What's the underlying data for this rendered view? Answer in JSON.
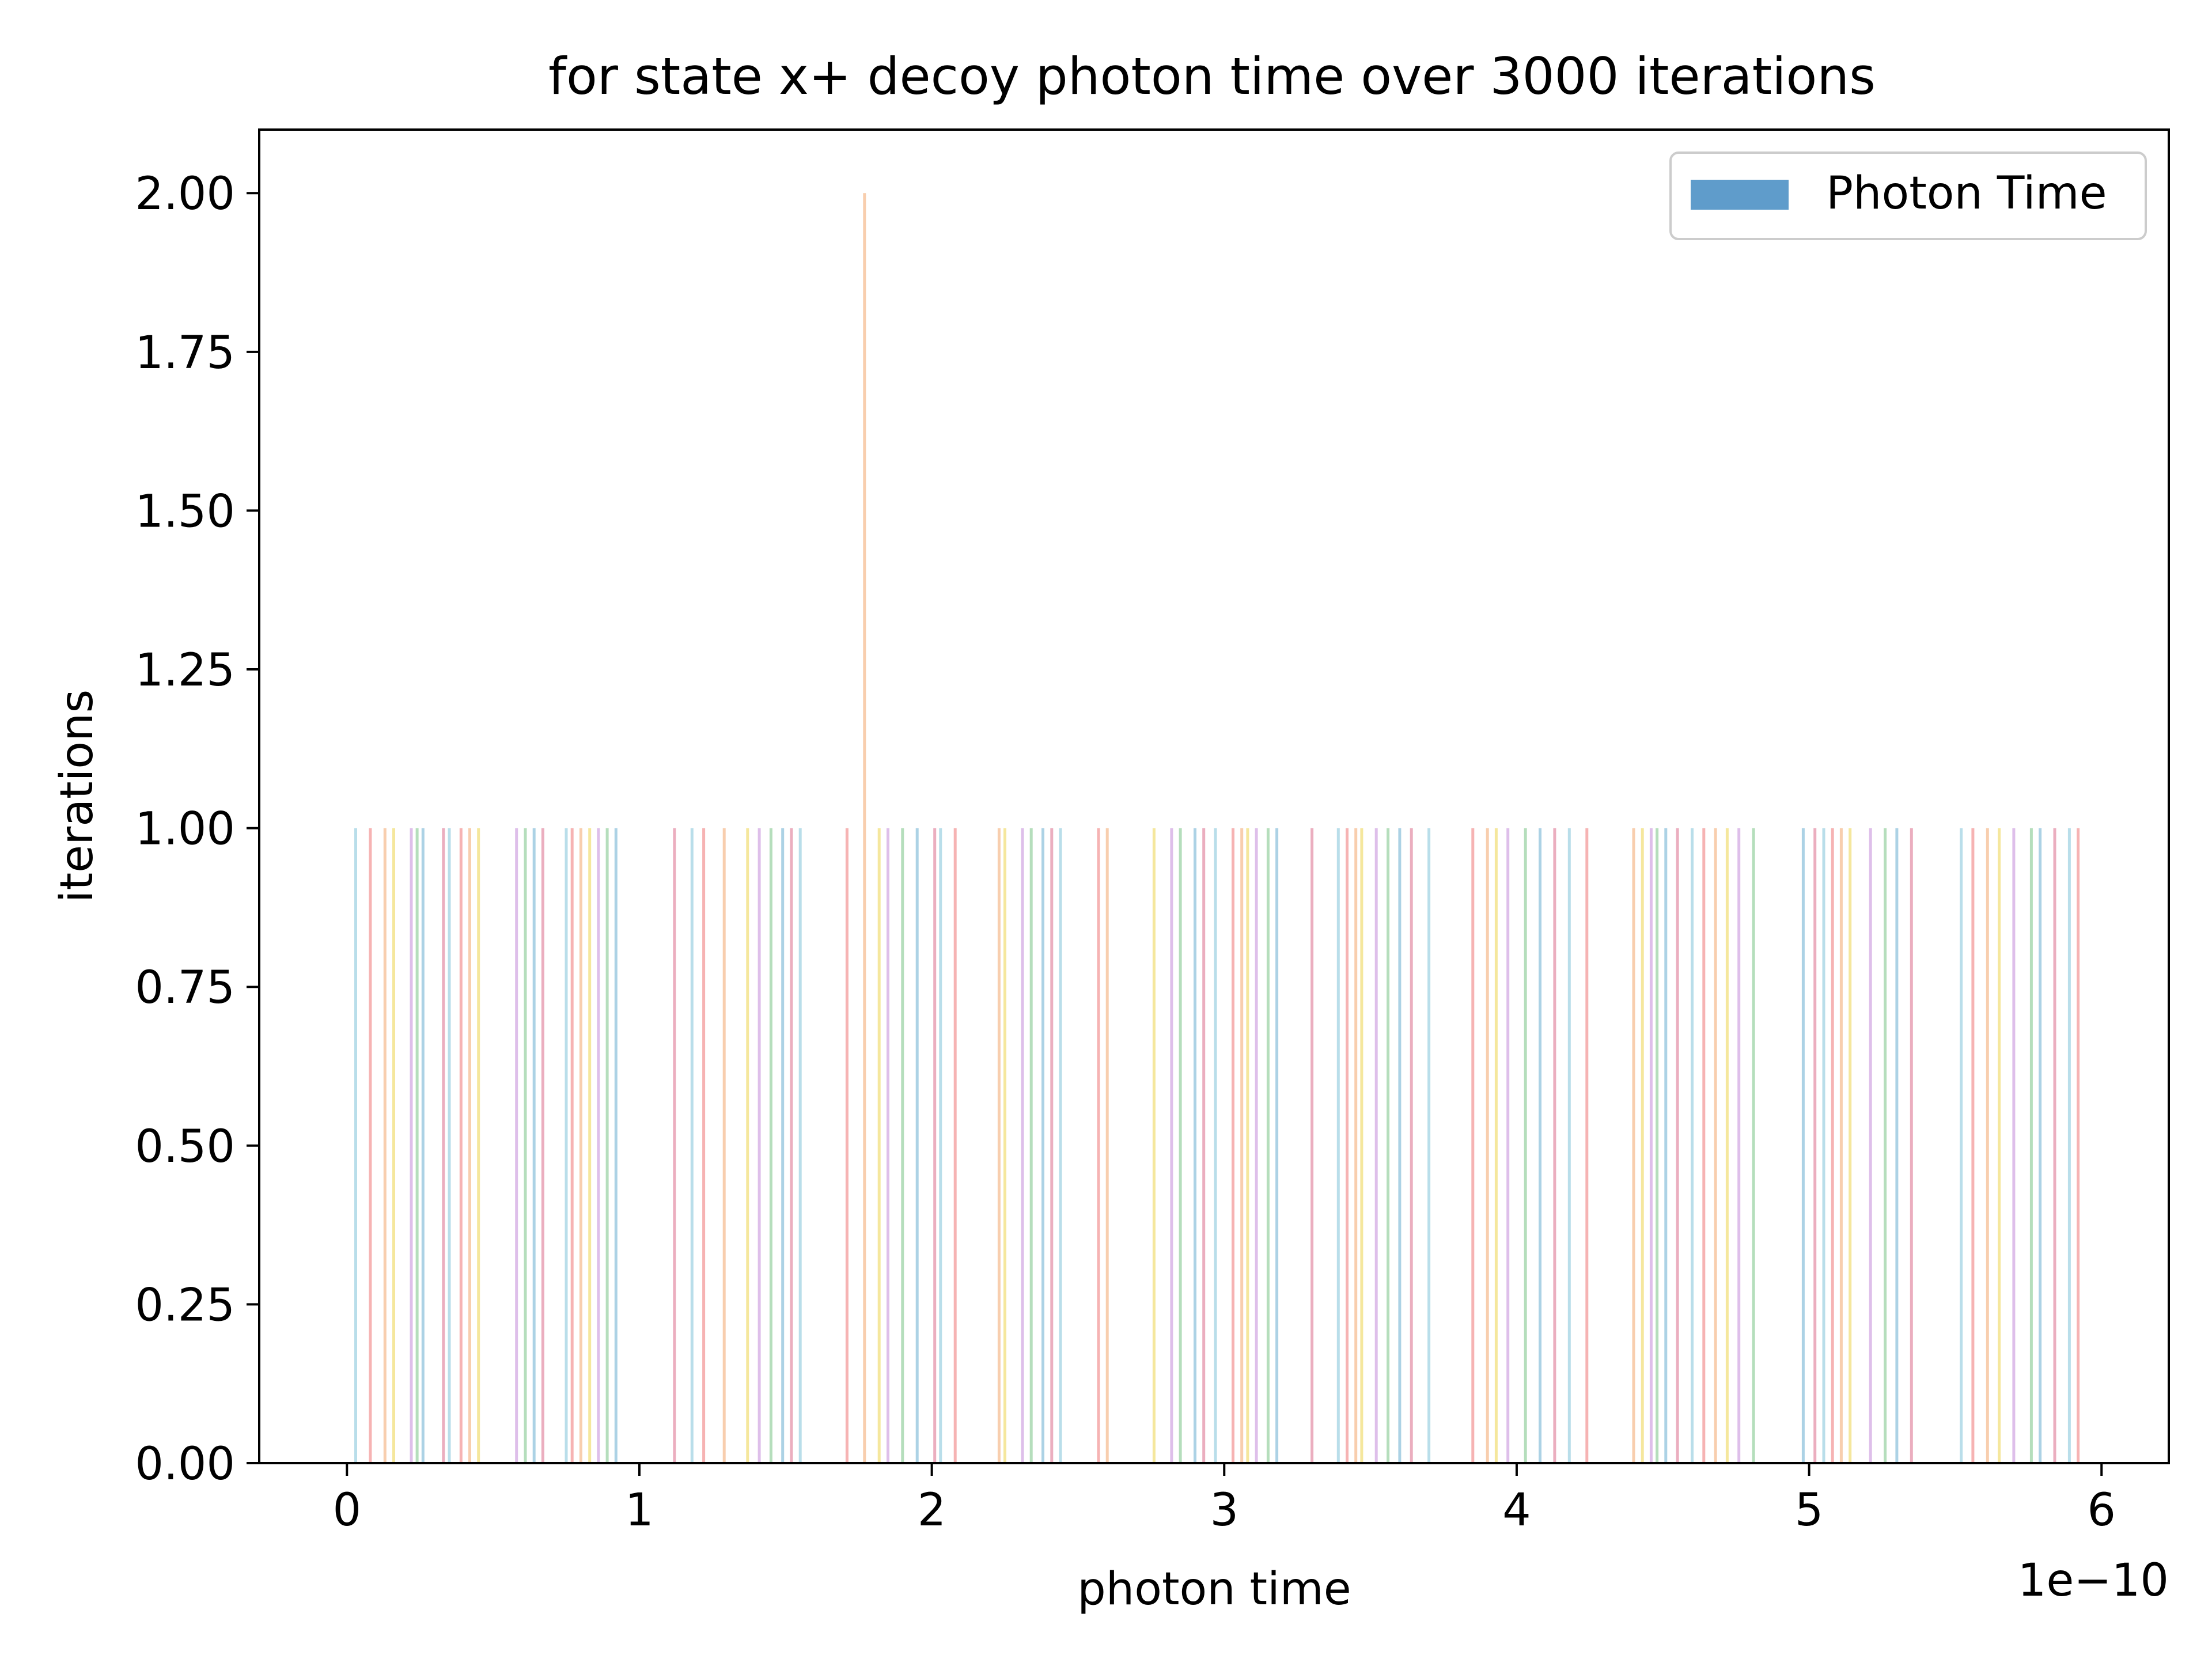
{
  "chart_data": {
    "type": "bar",
    "title": "for state x+ decoy photon time over 3000 iterations",
    "xlabel": "photon time",
    "ylabel": "iterations",
    "x_offset_label": "1e−10",
    "xlim": [
      -0.3,
      6.23
    ],
    "ylim": [
      0,
      2.1
    ],
    "xticks": [
      0,
      1,
      2,
      3,
      4,
      5,
      6
    ],
    "xtick_labels": [
      "0",
      "1",
      "2",
      "3",
      "4",
      "5",
      "6"
    ],
    "yticks": [
      0,
      0.25,
      0.5,
      0.75,
      1.0,
      1.25,
      1.5,
      1.75,
      2.0
    ],
    "ytick_labels": [
      "0.00",
      "0.25",
      "0.50",
      "0.75",
      "1.00",
      "1.25",
      "1.50",
      "1.75",
      "2.00"
    ],
    "grid": false,
    "legend": {
      "position": "top-right",
      "entries": [
        {
          "label": "Photon Time",
          "color": "#5f9ccb"
        }
      ]
    },
    "series": [
      {
        "name": "Photon Time",
        "palette": [
          "#add8e6",
          "#f4a6a6",
          "#f7c6a0",
          "#f3e38c",
          "#d8b4e6",
          "#a8d8b0",
          "#9ecae1",
          "#e8a0b4"
        ],
        "bars": [
          {
            "x": 0.03,
            "count": 1
          },
          {
            "x": 0.08,
            "count": 1
          },
          {
            "x": 0.13,
            "count": 1
          },
          {
            "x": 0.16,
            "count": 1
          },
          {
            "x": 0.22,
            "count": 1
          },
          {
            "x": 0.24,
            "count": 1
          },
          {
            "x": 0.26,
            "count": 1
          },
          {
            "x": 0.33,
            "count": 1
          },
          {
            "x": 0.35,
            "count": 1
          },
          {
            "x": 0.39,
            "count": 1
          },
          {
            "x": 0.42,
            "count": 1
          },
          {
            "x": 0.45,
            "count": 1
          },
          {
            "x": 0.58,
            "count": 1
          },
          {
            "x": 0.61,
            "count": 1
          },
          {
            "x": 0.64,
            "count": 1
          },
          {
            "x": 0.67,
            "count": 1
          },
          {
            "x": 0.75,
            "count": 1
          },
          {
            "x": 0.77,
            "count": 1
          },
          {
            "x": 0.8,
            "count": 1
          },
          {
            "x": 0.83,
            "count": 1
          },
          {
            "x": 0.86,
            "count": 1
          },
          {
            "x": 0.89,
            "count": 1
          },
          {
            "x": 0.92,
            "count": 1
          },
          {
            "x": 1.12,
            "count": 1
          },
          {
            "x": 1.18,
            "count": 1
          },
          {
            "x": 1.22,
            "count": 1
          },
          {
            "x": 1.29,
            "count": 1
          },
          {
            "x": 1.37,
            "count": 1
          },
          {
            "x": 1.41,
            "count": 1
          },
          {
            "x": 1.45,
            "count": 1
          },
          {
            "x": 1.49,
            "count": 1
          },
          {
            "x": 1.52,
            "count": 1
          },
          {
            "x": 1.55,
            "count": 1
          },
          {
            "x": 1.71,
            "count": 1
          },
          {
            "x": 1.77,
            "count": 2
          },
          {
            "x": 1.82,
            "count": 1
          },
          {
            "x": 1.85,
            "count": 1
          },
          {
            "x": 1.9,
            "count": 1
          },
          {
            "x": 1.95,
            "count": 1
          },
          {
            "x": 2.01,
            "count": 1
          },
          {
            "x": 2.03,
            "count": 1
          },
          {
            "x": 2.08,
            "count": 1
          },
          {
            "x": 2.23,
            "count": 1
          },
          {
            "x": 2.25,
            "count": 1
          },
          {
            "x": 2.31,
            "count": 1
          },
          {
            "x": 2.34,
            "count": 1
          },
          {
            "x": 2.38,
            "count": 1
          },
          {
            "x": 2.41,
            "count": 1
          },
          {
            "x": 2.44,
            "count": 1
          },
          {
            "x": 2.57,
            "count": 1
          },
          {
            "x": 2.6,
            "count": 1
          },
          {
            "x": 2.76,
            "count": 1
          },
          {
            "x": 2.82,
            "count": 1
          },
          {
            "x": 2.85,
            "count": 1
          },
          {
            "x": 2.9,
            "count": 1
          },
          {
            "x": 2.93,
            "count": 1
          },
          {
            "x": 2.97,
            "count": 1
          },
          {
            "x": 3.03,
            "count": 1
          },
          {
            "x": 3.06,
            "count": 1
          },
          {
            "x": 3.08,
            "count": 1
          },
          {
            "x": 3.11,
            "count": 1
          },
          {
            "x": 3.15,
            "count": 1
          },
          {
            "x": 3.18,
            "count": 1
          },
          {
            "x": 3.3,
            "count": 1
          },
          {
            "x": 3.39,
            "count": 1
          },
          {
            "x": 3.42,
            "count": 1
          },
          {
            "x": 3.45,
            "count": 1
          },
          {
            "x": 3.47,
            "count": 1
          },
          {
            "x": 3.52,
            "count": 1
          },
          {
            "x": 3.56,
            "count": 1
          },
          {
            "x": 3.6,
            "count": 1
          },
          {
            "x": 3.64,
            "count": 1
          },
          {
            "x": 3.7,
            "count": 1
          },
          {
            "x": 3.85,
            "count": 1
          },
          {
            "x": 3.9,
            "count": 1
          },
          {
            "x": 3.93,
            "count": 1
          },
          {
            "x": 3.97,
            "count": 1
          },
          {
            "x": 4.03,
            "count": 1
          },
          {
            "x": 4.08,
            "count": 1
          },
          {
            "x": 4.13,
            "count": 1
          },
          {
            "x": 4.18,
            "count": 1
          },
          {
            "x": 4.24,
            "count": 1
          },
          {
            "x": 4.4,
            "count": 1
          },
          {
            "x": 4.43,
            "count": 1
          },
          {
            "x": 4.46,
            "count": 1
          },
          {
            "x": 4.48,
            "count": 1
          },
          {
            "x": 4.51,
            "count": 1
          },
          {
            "x": 4.55,
            "count": 1
          },
          {
            "x": 4.6,
            "count": 1
          },
          {
            "x": 4.64,
            "count": 1
          },
          {
            "x": 4.68,
            "count": 1
          },
          {
            "x": 4.72,
            "count": 1
          },
          {
            "x": 4.76,
            "count": 1
          },
          {
            "x": 4.81,
            "count": 1
          },
          {
            "x": 4.98,
            "count": 1
          },
          {
            "x": 5.02,
            "count": 1
          },
          {
            "x": 5.05,
            "count": 1
          },
          {
            "x": 5.08,
            "count": 1
          },
          {
            "x": 5.11,
            "count": 1
          },
          {
            "x": 5.14,
            "count": 1
          },
          {
            "x": 5.21,
            "count": 1
          },
          {
            "x": 5.26,
            "count": 1
          },
          {
            "x": 5.3,
            "count": 1
          },
          {
            "x": 5.35,
            "count": 1
          },
          {
            "x": 5.52,
            "count": 1
          },
          {
            "x": 5.56,
            "count": 1
          },
          {
            "x": 5.61,
            "count": 1
          },
          {
            "x": 5.65,
            "count": 1
          },
          {
            "x": 5.7,
            "count": 1
          },
          {
            "x": 5.76,
            "count": 1
          },
          {
            "x": 5.79,
            "count": 1
          },
          {
            "x": 5.84,
            "count": 1
          },
          {
            "x": 5.89,
            "count": 1
          },
          {
            "x": 5.92,
            "count": 1
          }
        ]
      }
    ]
  }
}
